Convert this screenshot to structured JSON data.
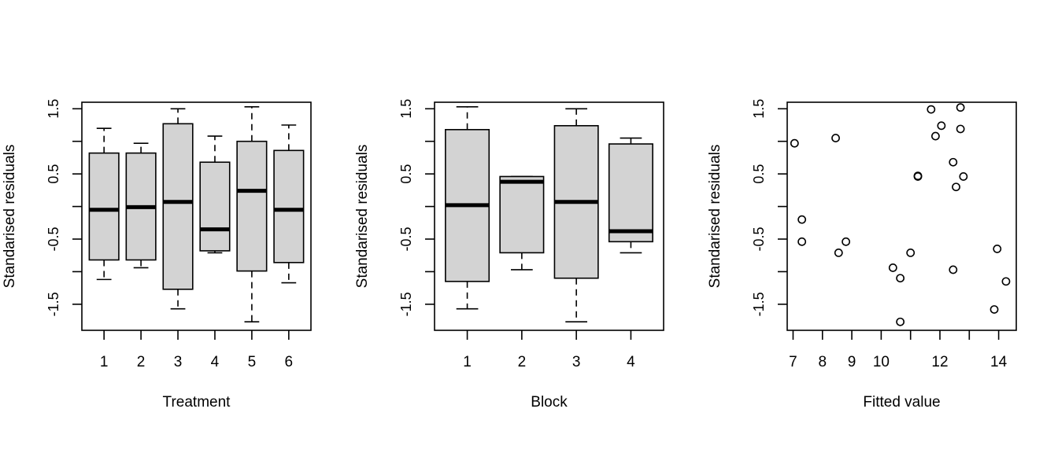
{
  "chart_data": [
    {
      "type": "boxplot",
      "xlabel": "Treatment",
      "ylabel": "Standarised residuals",
      "ylim": [
        -1.9,
        1.6
      ],
      "yticks": [
        -1.5,
        -0.5,
        0.5,
        1.5
      ],
      "ytick_labels": [
        "-1.5",
        "-0.5",
        "0.5",
        "1.5"
      ],
      "categories": [
        "1",
        "2",
        "3",
        "4",
        "5",
        "6"
      ],
      "box_fill": "#d3d3d3",
      "boxes": [
        {
          "lower_whisker": -1.12,
          "q1": -0.82,
          "median": -0.05,
          "q3": 0.82,
          "upper_whisker": 1.2
        },
        {
          "lower_whisker": -0.94,
          "q1": -0.82,
          "median": -0.01,
          "q3": 0.82,
          "upper_whisker": 0.97
        },
        {
          "lower_whisker": -1.57,
          "q1": -1.27,
          "median": 0.07,
          "q3": 1.27,
          "upper_whisker": 1.5
        },
        {
          "lower_whisker": -0.71,
          "q1": -0.68,
          "median": -0.35,
          "q3": 0.68,
          "upper_whisker": 1.08
        },
        {
          "lower_whisker": -1.77,
          "q1": -0.99,
          "median": 0.24,
          "q3": 1.0,
          "upper_whisker": 1.53
        },
        {
          "lower_whisker": -1.17,
          "q1": -0.86,
          "median": -0.05,
          "q3": 0.86,
          "upper_whisker": 1.25
        }
      ]
    },
    {
      "type": "boxplot",
      "xlabel": "Block",
      "ylabel": "Standarised residuals",
      "ylim": [
        -1.9,
        1.6
      ],
      "yticks": [
        -1.5,
        -0.5,
        0.5,
        1.5
      ],
      "ytick_labels": [
        "-1.5",
        "-0.5",
        "0.5",
        "1.5"
      ],
      "categories": [
        "1",
        "2",
        "3",
        "4"
      ],
      "box_fill": "#d3d3d3",
      "boxes": [
        {
          "lower_whisker": -1.57,
          "q1": -1.15,
          "median": 0.02,
          "q3": 1.18,
          "upper_whisker": 1.53
        },
        {
          "lower_whisker": -0.97,
          "q1": -0.71,
          "median": 0.38,
          "q3": 0.46,
          "upper_whisker": 0.46
        },
        {
          "lower_whisker": -1.77,
          "q1": -1.1,
          "median": 0.07,
          "q3": 1.24,
          "upper_whisker": 1.5
        },
        {
          "lower_whisker": -0.71,
          "q1": -0.54,
          "median": -0.38,
          "q3": 0.96,
          "upper_whisker": 1.05
        }
      ]
    },
    {
      "type": "scatter",
      "xlabel": "Fitted value",
      "ylabel": "Standarised residuals",
      "xlim": [
        6.8,
        14.6
      ],
      "ylim": [
        -1.9,
        1.6
      ],
      "xticks": [
        7,
        8,
        9,
        10,
        11,
        12,
        13,
        14
      ],
      "xtick_labels": [
        "7",
        "8",
        "9",
        "10",
        "",
        "12",
        "",
        "14"
      ],
      "yticks": [
        -1.5,
        -0.5,
        0.5,
        1.5
      ],
      "ytick_labels": [
        "-1.5",
        "-0.5",
        "0.5",
        "1.5"
      ],
      "points": [
        {
          "x": 7.05,
          "y": 0.97
        },
        {
          "x": 7.3,
          "y": -0.2
        },
        {
          "x": 7.3,
          "y": -0.54
        },
        {
          "x": 8.45,
          "y": 1.05
        },
        {
          "x": 8.55,
          "y": -0.71
        },
        {
          "x": 8.8,
          "y": -0.54
        },
        {
          "x": 10.4,
          "y": -0.94
        },
        {
          "x": 10.65,
          "y": -1.1
        },
        {
          "x": 10.65,
          "y": -1.77
        },
        {
          "x": 11.0,
          "y": -0.71
        },
        {
          "x": 11.25,
          "y": 0.46
        },
        {
          "x": 11.25,
          "y": 0.47
        },
        {
          "x": 11.7,
          "y": 1.49
        },
        {
          "x": 11.85,
          "y": 1.08
        },
        {
          "x": 12.05,
          "y": 1.24
        },
        {
          "x": 12.45,
          "y": -0.97
        },
        {
          "x": 12.45,
          "y": 0.68
        },
        {
          "x": 12.55,
          "y": 0.3
        },
        {
          "x": 12.7,
          "y": 1.52
        },
        {
          "x": 12.7,
          "y": 1.19
        },
        {
          "x": 12.8,
          "y": 0.46
        },
        {
          "x": 13.85,
          "y": -1.58
        },
        {
          "x": 13.95,
          "y": -0.65
        },
        {
          "x": 14.25,
          "y": -1.15
        }
      ]
    }
  ]
}
